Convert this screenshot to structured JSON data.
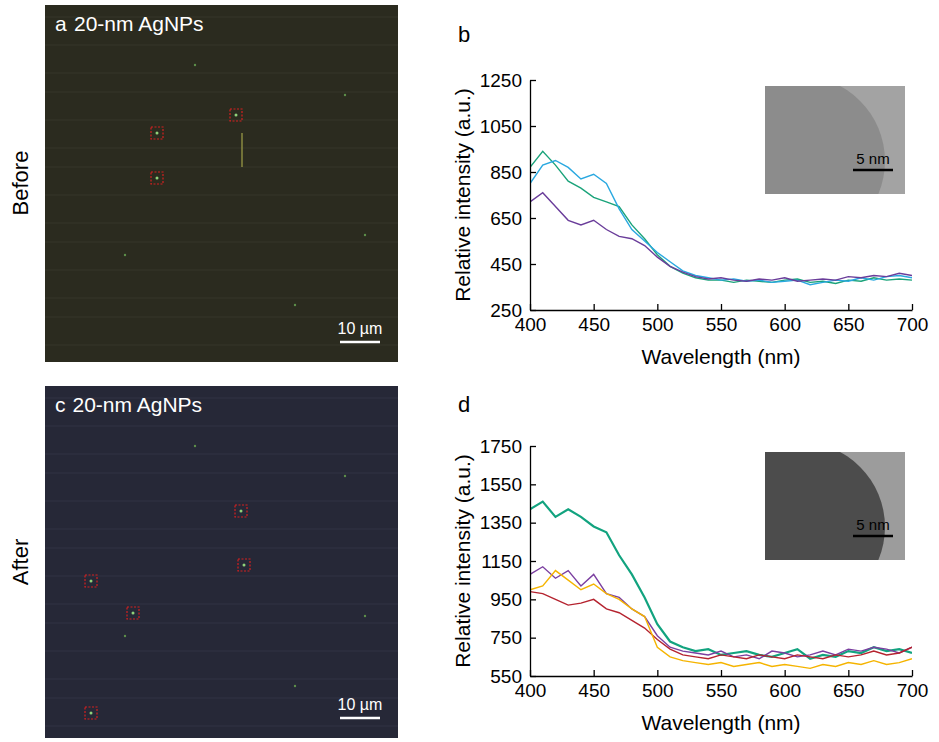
{
  "row_labels": [
    "Before",
    "After"
  ],
  "images": [
    {
      "panel_label": "a",
      "title": "20-nm AgNPs",
      "scale_bar": "10 µm"
    },
    {
      "panel_label": "c",
      "title": "20-nm AgNPs",
      "scale_bar": "10 µm"
    }
  ],
  "chart_data": [
    {
      "type": "line",
      "panel_label": "b",
      "inset_scale_bar": "5 nm",
      "x_label": "Wavelength (nm)",
      "y_label": "Relative intensity (a.u.)",
      "xlim": [
        400,
        700
      ],
      "xticks": [
        400,
        450,
        500,
        550,
        600,
        650,
        700
      ],
      "ylim": [
        250,
        1250
      ],
      "yticks": [
        250,
        450,
        650,
        850,
        1050,
        1250
      ],
      "x": [
        400,
        410,
        420,
        430,
        440,
        450,
        460,
        470,
        480,
        490,
        500,
        510,
        520,
        530,
        540,
        550,
        560,
        570,
        580,
        590,
        600,
        610,
        620,
        630,
        640,
        650,
        660,
        670,
        680,
        690,
        700
      ],
      "series": [
        {
          "color": "#1aa37a",
          "values": [
            870,
            940,
            880,
            810,
            780,
            740,
            720,
            700,
            620,
            560,
            490,
            440,
            410,
            390,
            380,
            380,
            370,
            380,
            375,
            370,
            380,
            385,
            370,
            375,
            365,
            380,
            375,
            390,
            380,
            385,
            380
          ]
        },
        {
          "color": "#29a8e0",
          "values": [
            800,
            880,
            900,
            870,
            820,
            840,
            800,
            690,
            600,
            550,
            500,
            460,
            420,
            400,
            390,
            380,
            385,
            375,
            380,
            370,
            375,
            380,
            360,
            370,
            380,
            375,
            390,
            380,
            395,
            400,
            390
          ]
        },
        {
          "color": "#6a3d9a",
          "values": [
            720,
            760,
            700,
            640,
            620,
            640,
            600,
            570,
            560,
            530,
            480,
            440,
            415,
            395,
            385,
            390,
            380,
            375,
            385,
            380,
            390,
            375,
            380,
            385,
            380,
            395,
            390,
            400,
            395,
            410,
            400
          ]
        }
      ]
    },
    {
      "type": "line",
      "panel_label": "d",
      "inset_scale_bar": "5 nm",
      "x_label": "Wavelength (nm)",
      "y_label": "Relative intensity (a.u.)",
      "xlim": [
        400,
        700
      ],
      "xticks": [
        400,
        450,
        500,
        550,
        600,
        650,
        700
      ],
      "ylim": [
        550,
        1750
      ],
      "yticks": [
        550,
        750,
        950,
        1150,
        1350,
        1550,
        1750
      ],
      "x": [
        400,
        410,
        420,
        430,
        440,
        450,
        460,
        470,
        480,
        490,
        500,
        510,
        520,
        530,
        540,
        550,
        560,
        570,
        580,
        590,
        600,
        610,
        620,
        630,
        640,
        650,
        660,
        670,
        680,
        690,
        700
      ],
      "series": [
        {
          "color": "#12a37f",
          "values": [
            1420,
            1460,
            1380,
            1420,
            1380,
            1330,
            1300,
            1180,
            1080,
            960,
            820,
            730,
            700,
            680,
            690,
            660,
            670,
            680,
            660,
            650,
            670,
            690,
            640,
            660,
            650,
            680,
            670,
            700,
            680,
            690,
            670
          ]
        },
        {
          "color": "#7b3fa0",
          "values": [
            1080,
            1120,
            1060,
            1100,
            1020,
            1080,
            980,
            960,
            900,
            860,
            760,
            700,
            680,
            670,
            660,
            680,
            650,
            660,
            640,
            680,
            670,
            650,
            660,
            680,
            660,
            690,
            680,
            700,
            690,
            670,
            700
          ]
        },
        {
          "color": "#b5232f",
          "values": [
            990,
            980,
            950,
            920,
            930,
            950,
            900,
            880,
            840,
            800,
            740,
            690,
            660,
            650,
            640,
            660,
            650,
            640,
            660,
            650,
            640,
            660,
            650,
            640,
            660,
            650,
            660,
            680,
            660,
            670,
            700
          ]
        },
        {
          "color": "#f5b400",
          "values": [
            1000,
            1020,
            1100,
            1050,
            1000,
            1030,
            980,
            950,
            900,
            860,
            700,
            650,
            630,
            620,
            610,
            620,
            600,
            610,
            620,
            600,
            610,
            600,
            590,
            610,
            600,
            620,
            610,
            630,
            610,
            620,
            640
          ]
        }
      ]
    }
  ]
}
